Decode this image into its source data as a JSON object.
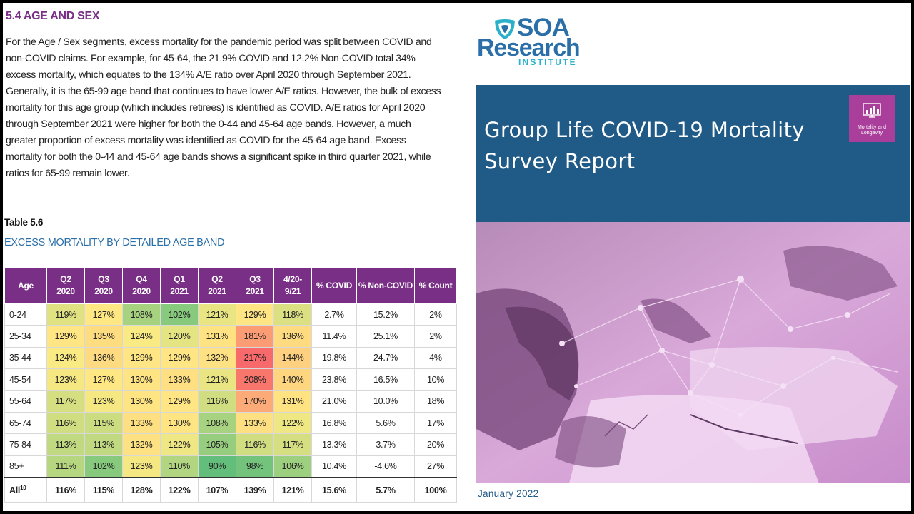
{
  "section": {
    "heading": "5.4 AGE AND SEX",
    "paragraph": "For the Age / Sex segments, excess mortality for the pandemic period was split between COVID and non-COVID claims. For example, for 45-64, the 21.9% COVID and 12.2% Non-COVID total 34% excess mortality, which equates to the 134% A/E ratio over April 2020 through September 2021. Generally, it is the 65-99 age band that continues to have lower A/E ratios. However, the bulk of excess mortality for this age group (which includes retirees) is identified as COVID. A/E ratios for April 2020 through September 2021 were higher for both the 0-44 and 45-64 age bands. However, a much greater proportion of excess mortality was identified as COVID for the 45-64 age band. Excess mortality for both the 0-44 and 45-64 age bands shows a significant spike in third quarter 2021, while ratios for 65-99 remain lower."
  },
  "table": {
    "label": "Table 5.6",
    "title": "EXCESS MORTALITY BY DETAILED AGE BAND",
    "headers": [
      [
        "Age"
      ],
      [
        "Q2",
        "2020"
      ],
      [
        "Q3",
        "2020"
      ],
      [
        "Q4",
        "2020"
      ],
      [
        "Q1",
        "2021"
      ],
      [
        "Q2",
        "2021"
      ],
      [
        "Q3",
        "2021"
      ],
      [
        "4/20-",
        "9/21"
      ],
      [
        "% COVID"
      ],
      [
        "% Non-COVID"
      ],
      [
        "% Count"
      ]
    ],
    "rows": [
      [
        "0-24",
        "119%",
        "127%",
        "108%",
        "102%",
        "121%",
        "129%",
        "118%",
        "2.7%",
        "15.2%",
        "2%"
      ],
      [
        "25-34",
        "129%",
        "135%",
        "124%",
        "120%",
        "131%",
        "181%",
        "136%",
        "11.4%",
        "25.1%",
        "2%"
      ],
      [
        "35-44",
        "124%",
        "136%",
        "129%",
        "129%",
        "132%",
        "217%",
        "144%",
        "19.8%",
        "24.7%",
        "4%"
      ],
      [
        "45-54",
        "123%",
        "127%",
        "130%",
        "133%",
        "121%",
        "208%",
        "140%",
        "23.8%",
        "16.5%",
        "10%"
      ],
      [
        "55-64",
        "117%",
        "123%",
        "130%",
        "129%",
        "116%",
        "170%",
        "131%",
        "21.0%",
        "10.0%",
        "18%"
      ],
      [
        "65-74",
        "116%",
        "115%",
        "133%",
        "130%",
        "108%",
        "133%",
        "122%",
        "16.8%",
        "5.6%",
        "17%"
      ],
      [
        "75-84",
        "113%",
        "113%",
        "132%",
        "122%",
        "105%",
        "116%",
        "117%",
        "13.3%",
        "3.7%",
        "20%"
      ],
      [
        "85+",
        "111%",
        "102%",
        "123%",
        "110%",
        "90%",
        "98%",
        "106%",
        "10.4%",
        "-4.6%",
        "27%"
      ]
    ],
    "all_row": {
      "label": "All",
      "footnote": "10",
      "values": [
        "116%",
        "115%",
        "128%",
        "122%",
        "107%",
        "139%",
        "121%",
        "15.6%",
        "5.7%",
        "100%"
      ]
    },
    "colors": {
      "header": "#7a2f86",
      "scale_low": "#63be7b",
      "scale_mid": "#ffeb84",
      "scale_high": "#f8696b"
    }
  },
  "cover": {
    "logo_soa": "SOA",
    "logo_research": "Research",
    "logo_institute": "INSTITUTE",
    "title_line1": "Group Life COVID-19 Mortality",
    "title_line2": "Survey Report",
    "badge_text": "Mortality and Longevity",
    "date": "January 2022",
    "band_color": "#205a87",
    "badge_color": "#a93f9b"
  }
}
